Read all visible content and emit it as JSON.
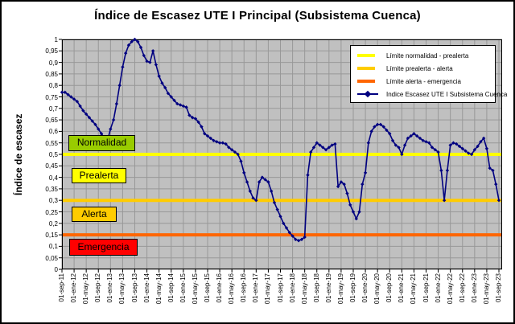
{
  "title": "Índice de Escasez UTE I Principal (Subsistema Cuenca)",
  "y_axis_title": "Índice de escasez",
  "zones": {
    "normalidad": {
      "label": "Normalidad",
      "color": "#99CC00"
    },
    "prealerta": {
      "label": "Prealerta",
      "color": "#FFFF00"
    },
    "alerta": {
      "label": "Alerta",
      "color": "#FFCC00"
    },
    "emergencia": {
      "label": "Emergencia",
      "color": "#FF0000"
    }
  },
  "legend": {
    "items": [
      {
        "label": "Límite normalidad - prealerta",
        "color": "#FFFF00",
        "type": "line"
      },
      {
        "label": "Límite prealerta - alerta",
        "color": "#FFCC00",
        "type": "line"
      },
      {
        "label": "Límite alerta - emergencia",
        "color": "#FF6600",
        "type": "line"
      },
      {
        "label": "Indice Escasez UTE I Subsistema Cuenca",
        "color": "#000080",
        "type": "line-marker"
      }
    ]
  },
  "chart_data": {
    "type": "line",
    "title": "Índice de Escasez UTE I Principal (Subsistema Cuenca)",
    "xlabel": "",
    "ylabel": "Índice de escasez",
    "ylim": [
      0,
      1
    ],
    "y_tick_step": 0.05,
    "grid": true,
    "plot_bg": "#C0C0C0",
    "grid_color": "#989898",
    "legend_position": "top-right",
    "y_tick_labels": [
      "0",
      "0,05",
      "0,1",
      "0,15",
      "0,2",
      "0,25",
      "0,3",
      "0,35",
      "0,4",
      "0,45",
      "0,5",
      "0,55",
      "0,6",
      "0,65",
      "0,7",
      "0,75",
      "0,8",
      "0,85",
      "0,9",
      "0,95",
      "1"
    ],
    "x_tick_labels": [
      "01-sep-11",
      "01-ene-12",
      "01-may-12",
      "01-sep-12",
      "01-ene-13",
      "01-may-13",
      "01-sep-13",
      "01-ene-14",
      "01-may-14",
      "01-sep-14",
      "01-ene-15",
      "01-may-15",
      "01-sep-15",
      "01-ene-16",
      "01-may-16",
      "01-sep-16",
      "01-ene-17",
      "01-may-17",
      "01-sep-17",
      "01-ene-18",
      "01-may-18",
      "01-sep-18",
      "01-ene-19",
      "01-may-19",
      "01-sep-19",
      "01-ene-20",
      "01-may-20",
      "01-sep-20",
      "01-ene-21",
      "01-may-21",
      "01-sep-21",
      "01-ene-22",
      "01-may-22",
      "01-sep-22",
      "01-ene-23",
      "01-may-23",
      "01-sep-23"
    ],
    "x_is_monthly": true,
    "thresholds": [
      {
        "label": "Límite normalidad - prealerta",
        "value": 0.5,
        "color": "#FFFF00"
      },
      {
        "label": "Límite prealerta - alerta",
        "value": 0.3,
        "color": "#FFCC00"
      },
      {
        "label": "Límite alerta - emergencia",
        "value": 0.15,
        "color": "#FF6600"
      }
    ],
    "series": [
      {
        "name": "Indice Escasez UTE I Subsistema Cuenca",
        "color": "#000080",
        "marker": "diamond",
        "values": [
          0.77,
          0.77,
          0.76,
          0.75,
          0.74,
          0.73,
          0.71,
          0.69,
          0.675,
          0.66,
          0.645,
          0.63,
          0.61,
          0.59,
          0.57,
          0.56,
          0.61,
          0.65,
          0.72,
          0.8,
          0.88,
          0.94,
          0.975,
          0.99,
          1.0,
          0.99,
          0.965,
          0.93,
          0.905,
          0.9,
          0.95,
          0.89,
          0.84,
          0.81,
          0.79,
          0.765,
          0.75,
          0.735,
          0.72,
          0.715,
          0.71,
          0.705,
          0.67,
          0.66,
          0.655,
          0.64,
          0.62,
          0.59,
          0.58,
          0.57,
          0.56,
          0.555,
          0.55,
          0.55,
          0.545,
          0.53,
          0.52,
          0.51,
          0.5,
          0.47,
          0.42,
          0.38,
          0.34,
          0.31,
          0.3,
          0.38,
          0.4,
          0.39,
          0.38,
          0.34,
          0.29,
          0.26,
          0.23,
          0.2,
          0.18,
          0.16,
          0.145,
          0.13,
          0.125,
          0.13,
          0.14,
          0.41,
          0.51,
          0.53,
          0.55,
          0.54,
          0.53,
          0.52,
          0.53,
          0.54,
          0.545,
          0.36,
          0.38,
          0.37,
          0.33,
          0.28,
          0.25,
          0.22,
          0.25,
          0.37,
          0.42,
          0.55,
          0.6,
          0.62,
          0.63,
          0.63,
          0.62,
          0.605,
          0.59,
          0.56,
          0.54,
          0.53,
          0.5,
          0.54,
          0.57,
          0.58,
          0.59,
          0.58,
          0.57,
          0.56,
          0.555,
          0.55,
          0.53,
          0.52,
          0.51,
          0.43,
          0.3,
          0.43,
          0.54,
          0.55,
          0.545,
          0.535,
          0.525,
          0.515,
          0.505,
          0.5,
          0.52,
          0.535,
          0.555,
          0.57,
          0.525,
          0.44,
          0.43,
          0.37,
          0.3
        ]
      }
    ]
  }
}
